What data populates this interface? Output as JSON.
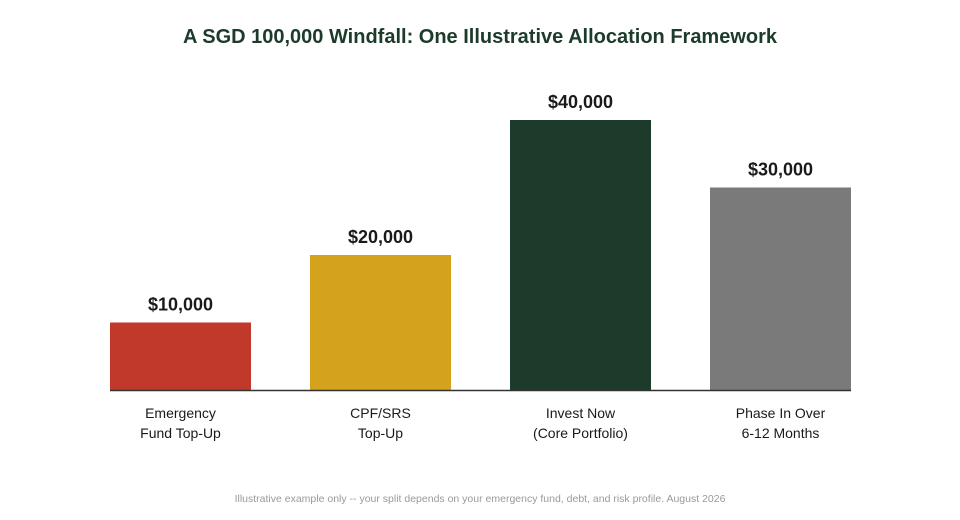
{
  "chart_data": {
    "type": "bar",
    "title": "A SGD 100,000 Windfall: One Illustrative Allocation Framework",
    "categories": [
      [
        "Emergency",
        "Fund Top-Up"
      ],
      [
        "CPF/SRS",
        "Top-Up"
      ],
      [
        "Invest Now",
        "(Core Portfolio)"
      ],
      [
        "Phase In Over",
        "6-12 Months"
      ]
    ],
    "values": [
      10000,
      20000,
      40000,
      30000
    ],
    "data_labels": [
      "$10,000",
      "$20,000",
      "$40,000",
      "$30,000"
    ],
    "colors": [
      "#c0392b",
      "#d4a21c",
      "#1c3b2b",
      "#7a7a7a"
    ],
    "xlabel": "",
    "ylabel": "",
    "ylim": [
      0,
      40000
    ],
    "grid": false,
    "legend": "none"
  },
  "footnote": "Illustrative example only -- your split depends on your emergency fund, debt, and risk profile. August 2026"
}
